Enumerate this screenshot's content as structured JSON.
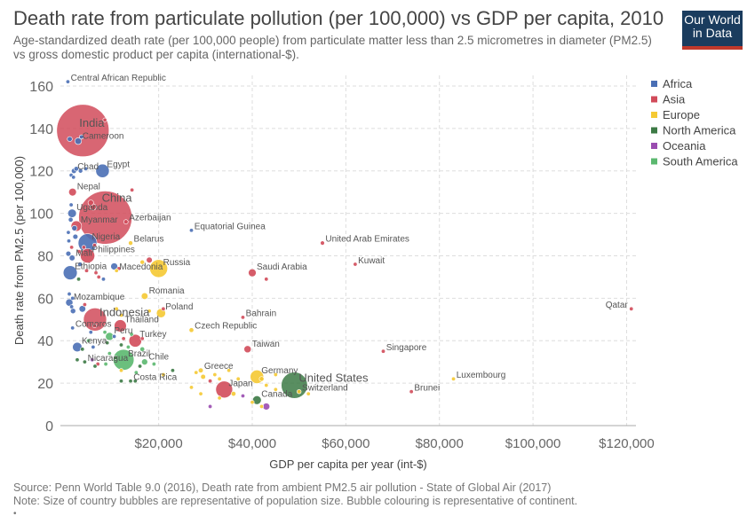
{
  "header": {
    "title": "Death rate from particulate pollution (per 100,000) vs GDP per capita, 2010",
    "subtitle": "Age-standardized death rate (per 100,000 people) from particulate matter less than 2.5 micrometres in diameter (PM2.5) vs gross domestic product per capita (international-$).",
    "logo_line1": "Our World",
    "logo_line2": "in Data"
  },
  "footer": {
    "source": "Source: Penn World Table 9.0 (2016), Death rate from ambient PM2.5 air pollution - State of Global Air (2017)",
    "note": "Note: Size of country bubbles are representative of population size. Bubble colouring is representative of continent.",
    "mark": "•"
  },
  "colors": {
    "Africa": "#4a6fb5",
    "Asia": "#d14b5a",
    "Europe": "#f5c933",
    "North America": "#3c7a45",
    "Oceania": "#9a4db0",
    "South America": "#5bb86f"
  },
  "chart_data": {
    "type": "scatter",
    "xlabel": "GDP per capita per year (int-$)",
    "ylabel": "Death rate from PM2.5 (per 100,000)",
    "xlim": [
      -1000,
      122000
    ],
    "ylim": [
      0,
      165
    ],
    "xticks": [
      20000,
      40000,
      60000,
      80000,
      100000,
      120000
    ],
    "xtick_labels": [
      "$20,000",
      "$40,000",
      "$60,000",
      "$80,000",
      "$100,000",
      "$120,000"
    ],
    "yticks": [
      0,
      20,
      40,
      60,
      80,
      100,
      120,
      140,
      160
    ],
    "grid": true,
    "legend_position": "top-right",
    "legend": [
      "Africa",
      "Asia",
      "Europe",
      "North America",
      "Oceania",
      "South America"
    ],
    "points": [
      {
        "label": "Central African Republic",
        "x": 600,
        "y": 162,
        "continent": "Africa",
        "pop": 4
      },
      {
        "label": "India",
        "x": 3800,
        "y": 139,
        "continent": "Asia",
        "pop": 1230
      },
      {
        "label": "Cameroon",
        "x": 2800,
        "y": 134,
        "continent": "Africa",
        "pop": 20
      },
      {
        "label": "Chad",
        "x": 1900,
        "y": 120,
        "continent": "Africa",
        "pop": 12
      },
      {
        "label": "Egypt",
        "x": 8000,
        "y": 120,
        "continent": "Africa",
        "pop": 82
      },
      {
        "label": "Nepal",
        "x": 1600,
        "y": 110,
        "continent": "Asia",
        "pop": 27
      },
      {
        "label": "China",
        "x": 8600,
        "y": 98,
        "continent": "Asia",
        "pop": 1340
      },
      {
        "label": "Uganda",
        "x": 1500,
        "y": 100,
        "continent": "Africa",
        "pop": 33
      },
      {
        "label": "Azerbaijan",
        "x": 13000,
        "y": 96,
        "continent": "Asia",
        "pop": 9
      },
      {
        "label": "Myanmar",
        "x": 2400,
        "y": 94,
        "continent": "Asia",
        "pop": 50
      },
      {
        "label": "Equatorial Guinea",
        "x": 27000,
        "y": 92,
        "continent": "Africa",
        "pop": 1
      },
      {
        "label": "Nigeria",
        "x": 4800,
        "y": 86,
        "continent": "Africa",
        "pop": 158
      },
      {
        "label": "Belarus",
        "x": 14000,
        "y": 86,
        "continent": "Europe",
        "pop": 9
      },
      {
        "label": "United Arab Emirates",
        "x": 55000,
        "y": 86,
        "continent": "Asia",
        "pop": 8
      },
      {
        "label": "Mali",
        "x": 1500,
        "y": 79,
        "continent": "Africa",
        "pop": 15
      },
      {
        "label": "Philippines",
        "x": 4800,
        "y": 80,
        "continent": "Asia",
        "pop": 93
      },
      {
        "label": "Kuwait",
        "x": 62000,
        "y": 76,
        "continent": "Asia",
        "pop": 3
      },
      {
        "label": "Russia",
        "x": 20000,
        "y": 74,
        "continent": "Europe",
        "pop": 143
      },
      {
        "label": "Ethiopia",
        "x": 1100,
        "y": 72,
        "continent": "Africa",
        "pop": 88
      },
      {
        "label": "Macedonia",
        "x": 11000,
        "y": 73,
        "continent": "Europe",
        "pop": 2
      },
      {
        "label": "Saudi Arabia",
        "x": 40000,
        "y": 72,
        "continent": "Asia",
        "pop": 28
      },
      {
        "label": "Romania",
        "x": 17000,
        "y": 61,
        "continent": "Europe",
        "pop": 20
      },
      {
        "label": "Mozambique",
        "x": 900,
        "y": 58,
        "continent": "Africa",
        "pop": 24
      },
      {
        "label": "Qatar",
        "x": 121000,
        "y": 55,
        "continent": "Asia",
        "pop": 2
      },
      {
        "label": "Indonesia",
        "x": 6400,
        "y": 50,
        "continent": "Asia",
        "pop": 240
      },
      {
        "label": "Poland",
        "x": 20500,
        "y": 53,
        "continent": "Europe",
        "pop": 38
      },
      {
        "label": "Bahrain",
        "x": 38000,
        "y": 51,
        "continent": "Asia",
        "pop": 1
      },
      {
        "label": "Thailand",
        "x": 11800,
        "y": 47,
        "continent": "Asia",
        "pop": 67
      },
      {
        "label": "Comoros",
        "x": 1600,
        "y": 46,
        "continent": "Africa",
        "pop": 1
      },
      {
        "label": "Czech Republic",
        "x": 27000,
        "y": 45,
        "continent": "Europe",
        "pop": 10
      },
      {
        "label": "Turkey",
        "x": 15000,
        "y": 40,
        "continent": "Asia",
        "pop": 73
      },
      {
        "label": "Peru",
        "x": 9500,
        "y": 42,
        "continent": "South America",
        "pop": 29
      },
      {
        "label": "Kenya",
        "x": 2600,
        "y": 37,
        "continent": "Africa",
        "pop": 41
      },
      {
        "label": "Taiwan",
        "x": 39000,
        "y": 36,
        "continent": "Asia",
        "pop": 23
      },
      {
        "label": "Singapore",
        "x": 68000,
        "y": 35,
        "continent": "Asia",
        "pop": 5
      },
      {
        "label": "Brazil",
        "x": 12500,
        "y": 31,
        "continent": "South America",
        "pop": 196
      },
      {
        "label": "Nicaragua",
        "x": 4200,
        "y": 30,
        "continent": "North America",
        "pop": 6
      },
      {
        "label": "Chile",
        "x": 17000,
        "y": 30,
        "continent": "South America",
        "pop": 17
      },
      {
        "label": "Greece",
        "x": 29000,
        "y": 26,
        "continent": "Europe",
        "pop": 11
      },
      {
        "label": "Germany",
        "x": 41000,
        "y": 23,
        "continent": "Europe",
        "pop": 81
      },
      {
        "label": "Luxembourg",
        "x": 83000,
        "y": 22,
        "continent": "Europe",
        "pop": 1
      },
      {
        "label": "United States",
        "x": 49000,
        "y": 19,
        "continent": "North America",
        "pop": 310
      },
      {
        "label": "Costa Rica",
        "x": 14000,
        "y": 21,
        "continent": "North America",
        "pop": 5
      },
      {
        "label": "Japan",
        "x": 34000,
        "y": 17,
        "continent": "Asia",
        "pop": 128
      },
      {
        "label": "Switzerland",
        "x": 50000,
        "y": 16,
        "continent": "Europe",
        "pop": 8
      },
      {
        "label": "Brunei",
        "x": 74000,
        "y": 16,
        "continent": "Asia",
        "pop": 1
      },
      {
        "label": "Canada",
        "x": 41000,
        "y": 12,
        "continent": "North America",
        "pop": 34
      },
      {
        "label": "",
        "x": 1000,
        "y": 135,
        "continent": "Africa",
        "pop": 11
      },
      {
        "label": "",
        "x": 3500,
        "y": 136,
        "continent": "Africa",
        "pop": 8
      },
      {
        "label": "",
        "x": 8500,
        "y": 144,
        "continent": "Asia",
        "pop": 5
      },
      {
        "label": "",
        "x": 2400,
        "y": 121,
        "continent": "Africa",
        "pop": 10
      },
      {
        "label": "",
        "x": 3300,
        "y": 120,
        "continent": "Africa",
        "pop": 9
      },
      {
        "label": "",
        "x": 4400,
        "y": 121,
        "continent": "Africa",
        "pop": 3
      },
      {
        "label": "",
        "x": 1800,
        "y": 117,
        "continent": "Africa",
        "pop": 5
      },
      {
        "label": "",
        "x": 1300,
        "y": 118,
        "continent": "Africa",
        "pop": 6
      },
      {
        "label": "",
        "x": 14300,
        "y": 111,
        "continent": "Asia",
        "pop": 2
      },
      {
        "label": "",
        "x": 1300,
        "y": 104,
        "continent": "Africa",
        "pop": 7
      },
      {
        "label": "",
        "x": 5500,
        "y": 105,
        "continent": "Asia",
        "pop": 14
      },
      {
        "label": "",
        "x": 6000,
        "y": 103,
        "continent": "Asia",
        "pop": 17
      },
      {
        "label": "",
        "x": 1200,
        "y": 97,
        "continent": "Africa",
        "pop": 10
      },
      {
        "label": "",
        "x": 2000,
        "y": 93,
        "continent": "Africa",
        "pop": 13
      },
      {
        "label": "",
        "x": 700,
        "y": 91,
        "continent": "Africa",
        "pop": 6
      },
      {
        "label": "",
        "x": 2200,
        "y": 89,
        "continent": "Africa",
        "pop": 12
      },
      {
        "label": "",
        "x": 800,
        "y": 87,
        "continent": "Africa",
        "pop": 4
      },
      {
        "label": "",
        "x": 1400,
        "y": 84,
        "continent": "Asia",
        "pop": 2
      },
      {
        "label": "",
        "x": 4000,
        "y": 84,
        "continent": "Asia",
        "pop": 5
      },
      {
        "label": "",
        "x": 6300,
        "y": 85,
        "continent": "Asia",
        "pop": 3
      },
      {
        "label": "",
        "x": 3000,
        "y": 82,
        "continent": "Asia",
        "pop": 4
      },
      {
        "label": "",
        "x": 700,
        "y": 81,
        "continent": "Africa",
        "pop": 12
      },
      {
        "label": "",
        "x": 3200,
        "y": 76,
        "continent": "Africa",
        "pop": 9
      },
      {
        "label": "",
        "x": 10500,
        "y": 75,
        "continent": "Africa",
        "pop": 22
      },
      {
        "label": "",
        "x": 11500,
        "y": 74,
        "continent": "Asia",
        "pop": 4
      },
      {
        "label": "",
        "x": 16500,
        "y": 77,
        "continent": "Europe",
        "pop": 9
      },
      {
        "label": "",
        "x": 18000,
        "y": 78,
        "continent": "Asia",
        "pop": 16
      },
      {
        "label": "",
        "x": 4600,
        "y": 73,
        "continent": "Asia",
        "pop": 7
      },
      {
        "label": "",
        "x": 6600,
        "y": 72,
        "continent": "Asia",
        "pop": 6
      },
      {
        "label": "",
        "x": 7200,
        "y": 70,
        "continent": "Asia",
        "pop": 3
      },
      {
        "label": "",
        "x": 2900,
        "y": 69,
        "continent": "North America",
        "pop": 4
      },
      {
        "label": "",
        "x": 8200,
        "y": 69,
        "continent": "Africa",
        "pop": 2
      },
      {
        "label": "",
        "x": 43000,
        "y": 69,
        "continent": "Asia",
        "pop": 2
      },
      {
        "label": "",
        "x": 900,
        "y": 62,
        "continent": "Africa",
        "pop": 5
      },
      {
        "label": "",
        "x": 1600,
        "y": 60,
        "continent": "Africa",
        "pop": 4
      },
      {
        "label": "",
        "x": 1400,
        "y": 56,
        "continent": "Africa",
        "pop": 7
      },
      {
        "label": "",
        "x": 1700,
        "y": 54,
        "continent": "Africa",
        "pop": 13
      },
      {
        "label": "",
        "x": 3700,
        "y": 55,
        "continent": "Africa",
        "pop": 20
      },
      {
        "label": "",
        "x": 4200,
        "y": 57,
        "continent": "Asia",
        "pop": 5
      },
      {
        "label": "",
        "x": 11000,
        "y": 55,
        "continent": "Europe",
        "pop": 3
      },
      {
        "label": "",
        "x": 18000,
        "y": 54,
        "continent": "Europe",
        "pop": 4
      },
      {
        "label": "",
        "x": 21000,
        "y": 55,
        "continent": "Asia",
        "pop": 5
      },
      {
        "label": "",
        "x": 12000,
        "y": 52,
        "continent": "Europe",
        "pop": 1
      },
      {
        "label": "",
        "x": 6300,
        "y": 47,
        "continent": "Asia",
        "pop": 3
      },
      {
        "label": "",
        "x": 5500,
        "y": 44,
        "continent": "Africa",
        "pop": 3
      },
      {
        "label": "",
        "x": 8500,
        "y": 44,
        "continent": "South America",
        "pop": 2
      },
      {
        "label": "",
        "x": 10500,
        "y": 42,
        "continent": "Africa",
        "pop": 4
      },
      {
        "label": "",
        "x": 12500,
        "y": 41,
        "continent": "Asia",
        "pop": 5
      },
      {
        "label": "",
        "x": 14200,
        "y": 43,
        "continent": "South America",
        "pop": 3
      },
      {
        "label": "",
        "x": 16500,
        "y": 41,
        "continent": "Asia",
        "pop": 2
      },
      {
        "label": "",
        "x": 5000,
        "y": 40,
        "continent": "South America",
        "pop": 6
      },
      {
        "label": "",
        "x": 9000,
        "y": 39,
        "continent": "North America",
        "pop": 2
      },
      {
        "label": "",
        "x": 12000,
        "y": 38,
        "continent": "North America",
        "pop": 3
      },
      {
        "label": "",
        "x": 13500,
        "y": 37,
        "continent": "South America",
        "pop": 4
      },
      {
        "label": "",
        "x": 3700,
        "y": 36,
        "continent": "North America",
        "pop": 2
      },
      {
        "label": "",
        "x": 6000,
        "y": 37,
        "continent": "Africa",
        "pop": 3
      },
      {
        "label": "",
        "x": 9500,
        "y": 34,
        "continent": "South America",
        "pop": 6
      },
      {
        "label": "",
        "x": 16500,
        "y": 36,
        "continent": "South America",
        "pop": 10
      },
      {
        "label": "",
        "x": 10800,
        "y": 32,
        "continent": "North America",
        "pop": 5
      },
      {
        "label": "",
        "x": 2600,
        "y": 31,
        "continent": "North America",
        "pop": 2
      },
      {
        "label": "",
        "x": 5800,
        "y": 31,
        "continent": "Oceania",
        "pop": 1
      },
      {
        "label": "",
        "x": 7000,
        "y": 29,
        "continent": "Asia",
        "pop": 3
      },
      {
        "label": "",
        "x": 8700,
        "y": 29,
        "continent": "South America",
        "pop": 2
      },
      {
        "label": "",
        "x": 6400,
        "y": 28,
        "continent": "North America",
        "pop": 2
      },
      {
        "label": "",
        "x": 16000,
        "y": 28,
        "continent": "North America",
        "pop": 1
      },
      {
        "label": "",
        "x": 19000,
        "y": 29,
        "continent": "South America",
        "pop": 3
      },
      {
        "label": "",
        "x": 12000,
        "y": 26,
        "continent": "Europe",
        "pop": 2
      },
      {
        "label": "",
        "x": 15200,
        "y": 25,
        "continent": "South America",
        "pop": 2
      },
      {
        "label": "",
        "x": 23000,
        "y": 26,
        "continent": "North America",
        "pop": 1
      },
      {
        "label": "",
        "x": 28000,
        "y": 25,
        "continent": "Europe",
        "pop": 5
      },
      {
        "label": "",
        "x": 29500,
        "y": 23,
        "continent": "Europe",
        "pop": 11
      },
      {
        "label": "",
        "x": 32000,
        "y": 24,
        "continent": "Europe",
        "pop": 2
      },
      {
        "label": "",
        "x": 33000,
        "y": 22,
        "continent": "Europe",
        "pop": 6
      },
      {
        "label": "",
        "x": 35000,
        "y": 26,
        "continent": "Europe",
        "pop": 3
      },
      {
        "label": "",
        "x": 37000,
        "y": 22,
        "continent": "Europe",
        "pop": 2
      },
      {
        "label": "",
        "x": 42000,
        "y": 22,
        "continent": "Europe",
        "pop": 10
      },
      {
        "label": "",
        "x": 45000,
        "y": 24,
        "continent": "Europe",
        "pop": 5
      },
      {
        "label": "",
        "x": 31000,
        "y": 21,
        "continent": "Asia",
        "pop": 7
      },
      {
        "label": "",
        "x": 12000,
        "y": 21,
        "continent": "North America",
        "pop": 3
      },
      {
        "label": "",
        "x": 15000,
        "y": 21,
        "continent": "North America",
        "pop": 1
      },
      {
        "label": "",
        "x": 21000,
        "y": 24,
        "continent": "Europe",
        "pop": 2
      },
      {
        "label": "",
        "x": 27000,
        "y": 18,
        "continent": "Europe",
        "pop": 3
      },
      {
        "label": "",
        "x": 29000,
        "y": 15,
        "continent": "Europe",
        "pop": 4
      },
      {
        "label": "",
        "x": 33000,
        "y": 13,
        "continent": "Europe",
        "pop": 6
      },
      {
        "label": "",
        "x": 36000,
        "y": 15,
        "continent": "Europe",
        "pop": 10
      },
      {
        "label": "",
        "x": 38000,
        "y": 14,
        "continent": "Oceania",
        "pop": 4
      },
      {
        "label": "",
        "x": 40000,
        "y": 11,
        "continent": "Europe",
        "pop": 5
      },
      {
        "label": "",
        "x": 42000,
        "y": 9,
        "continent": "Europe",
        "pop": 2
      },
      {
        "label": "",
        "x": 43000,
        "y": 19,
        "continent": "Europe",
        "pop": 2
      },
      {
        "label": "",
        "x": 45000,
        "y": 17,
        "continent": "Europe",
        "pop": 4
      },
      {
        "label": "",
        "x": 31000,
        "y": 9,
        "continent": "Oceania",
        "pop": 1
      },
      {
        "label": "",
        "x": 43000,
        "y": 9,
        "continent": "Oceania",
        "pop": 22
      },
      {
        "label": "",
        "x": 52000,
        "y": 15,
        "continent": "Europe",
        "pop": 3
      }
    ]
  }
}
